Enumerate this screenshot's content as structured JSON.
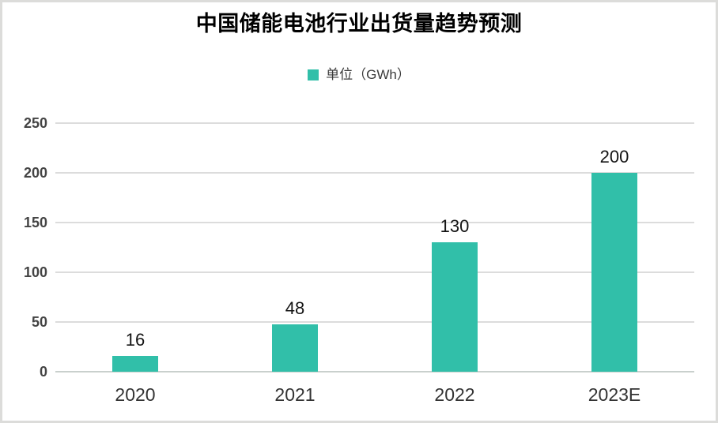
{
  "chart_data": {
    "type": "bar",
    "title": "中国储能电池行业出货量趋势预测",
    "legend": {
      "label": "单位（GWh）",
      "position": "top-center"
    },
    "categories": [
      "2020",
      "2021",
      "2022",
      "2023E"
    ],
    "values": [
      16,
      48,
      130,
      200
    ],
    "xlabel": "",
    "ylabel": "",
    "ylim": [
      0,
      250
    ],
    "yticks": [
      0,
      50,
      100,
      150,
      200,
      250
    ],
    "grid": true,
    "data_labels": true,
    "colors": {
      "bar": "#31BFA9",
      "gridline": "#dcdcdc",
      "axis_line": "#c9d0cd",
      "title_text": "#000000",
      "tick_text": "#444444",
      "category_text": "#333333",
      "data_label_text": "#141414",
      "legend_text": "#3a3a3a",
      "border": "#dcdcda",
      "background": "#ffffff"
    }
  }
}
